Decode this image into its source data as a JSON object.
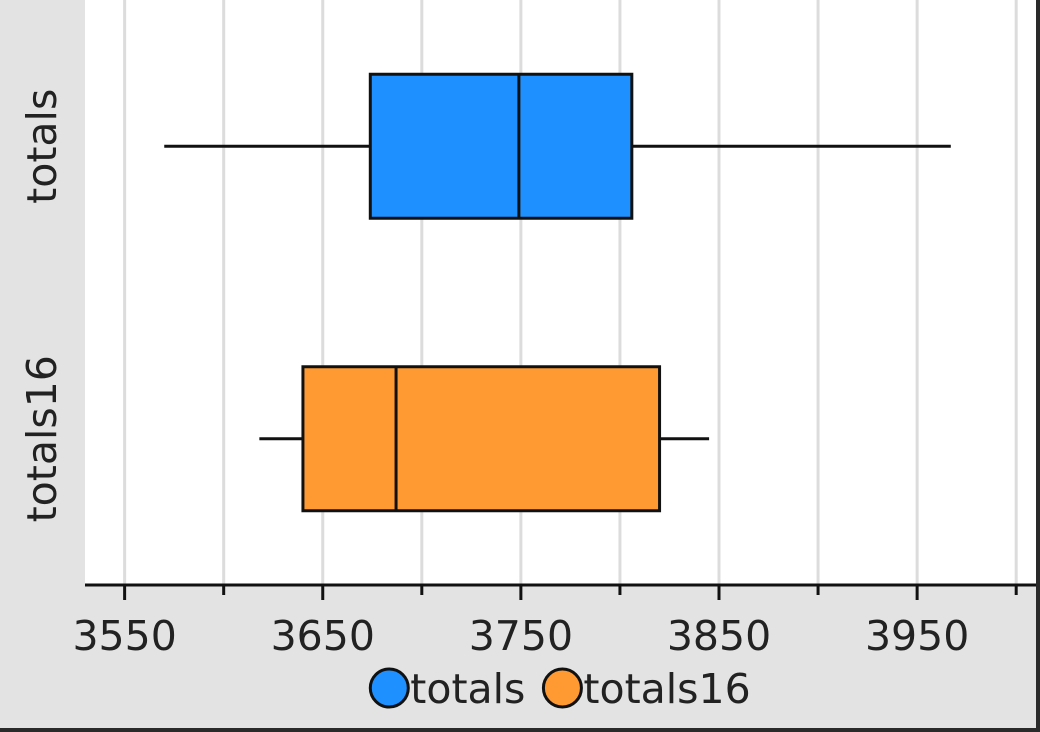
{
  "chart_data": {
    "type": "boxplot",
    "orientation": "horizontal",
    "xlim": [
      3530,
      4010
    ],
    "x_ticks": [
      3550,
      3650,
      3750,
      3850,
      3950
    ],
    "x_minor_ticks": [
      3600,
      3700,
      3800,
      3900,
      4000
    ],
    "grid": true,
    "legend_position": "bottom",
    "series": [
      {
        "name": "totals",
        "color": "#1e90ff",
        "min": 3570,
        "q1": 3674,
        "median": 3749,
        "q3": 3806,
        "max": 3967
      },
      {
        "name": "totals16",
        "color": "#ff9a33",
        "min": 3618,
        "q1": 3640,
        "median": 3687,
        "q3": 3820,
        "max": 3845
      }
    ]
  }
}
